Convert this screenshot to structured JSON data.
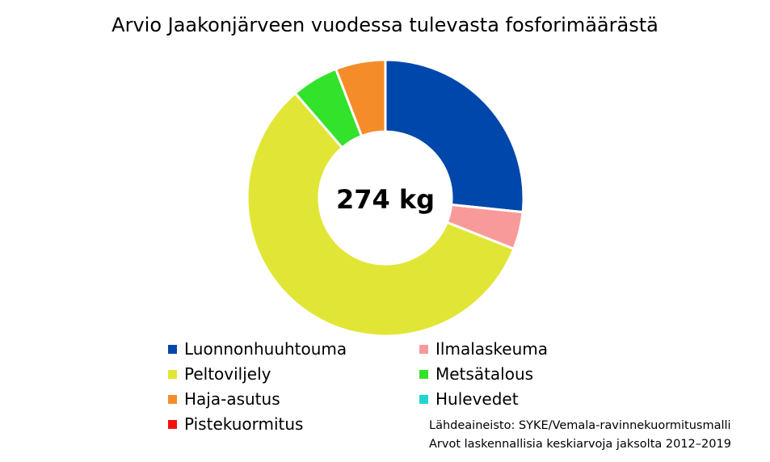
{
  "chart_data": {
    "type": "pie",
    "title": "Arvio Jaakonjärveen vuodessa tulevasta fosforimäärästä",
    "center_label": "274 kg",
    "categories": [
      "Luonnonhuuhtouma",
      "Ilmalaskeuma",
      "Peltoviljely",
      "Metsätalous",
      "Haja-asutus",
      "Hulevedet",
      "Pistekuormitus"
    ],
    "values": [
      73,
      12,
      158,
      15,
      16,
      0,
      0
    ],
    "colors": [
      "#0047AB",
      "#F99A9A",
      "#E1E636",
      "#33E22A",
      "#F58C2A",
      "#1FD6D0",
      "#F51010"
    ],
    "legend_position": "bottom",
    "legend_columns": 2
  },
  "notes": {
    "source_line1": "Lähdeaineisto: SYKE/Vemala-ravinnekuormitusmalli",
    "source_line2": "Arvot laskennallisia keskiarvoja jaksolta 2012–2019"
  }
}
